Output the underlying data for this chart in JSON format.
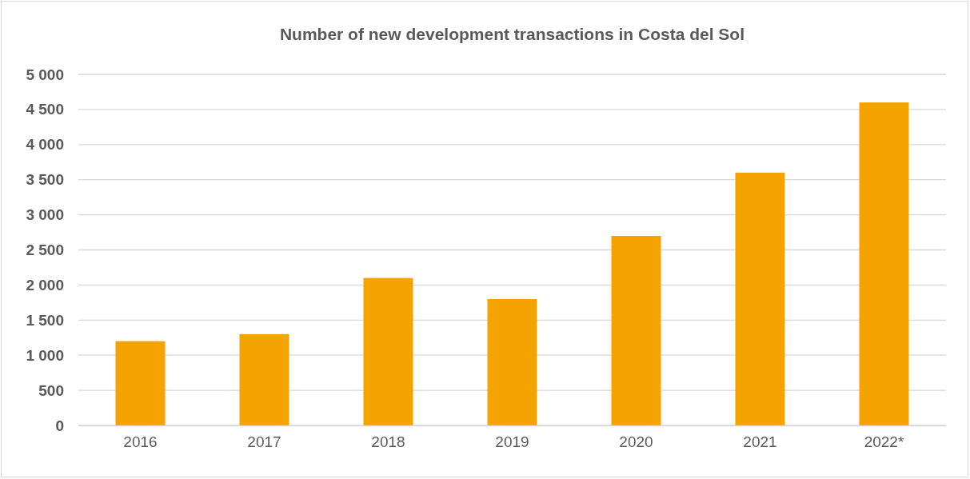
{
  "chart_data": {
    "type": "bar",
    "title": "Number of new development transactions in Costa del Sol",
    "categories": [
      "2016",
      "2017",
      "2018",
      "2019",
      "2020",
      "2021",
      "2022*"
    ],
    "values": [
      1200,
      1300,
      2100,
      1800,
      2700,
      3600,
      4600
    ],
    "color": "#f5a301",
    "ylim": [
      0,
      5000
    ],
    "yticks": [
      0,
      500,
      {
        "value": 1000,
        "label": "1 000"
      },
      {
        "value": 1500,
        "label": "1 500"
      },
      {
        "value": 2000,
        "label": "2 000"
      },
      {
        "value": 2500,
        "label": "2 500"
      },
      {
        "value": 3000,
        "label": "3 000"
      },
      {
        "value": 3500,
        "label": "3 500"
      },
      {
        "value": 4000,
        "label": "4 000"
      },
      {
        "value": 4500,
        "label": "4 500"
      },
      {
        "value": 5000,
        "label": "5 000"
      }
    ],
    "grid": "y"
  }
}
